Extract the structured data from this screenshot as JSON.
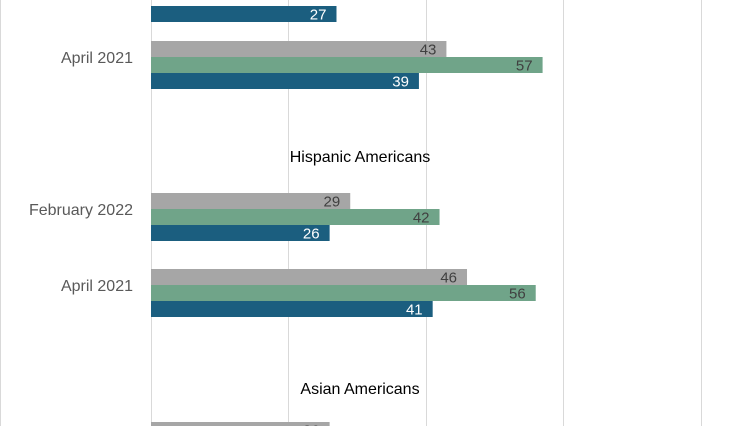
{
  "chart_data": {
    "type": "bar",
    "orientation": "horizontal",
    "title": "",
    "xlabel": "",
    "ylabel": "",
    "xlim": [
      0,
      100
    ],
    "grid": true,
    "series_colors": [
      "#a6a6a6",
      "#70a489",
      "#1b5e7f"
    ],
    "groups": [
      {
        "name": "",
        "rows": [
          {
            "label": "",
            "values": [
              null,
              null,
              27
            ]
          },
          {
            "label": "April 2021",
            "values": [
              43,
              57,
              39
            ]
          }
        ]
      },
      {
        "name": "Hispanic Americans",
        "rows": [
          {
            "label": "February 2022",
            "values": [
              29,
              42,
              26
            ]
          },
          {
            "label": "April 2021",
            "values": [
              46,
              56,
              41
            ]
          }
        ]
      },
      {
        "name": "Asian Americans",
        "rows": [
          {
            "label": "",
            "values": [
              26,
              null,
              null
            ]
          }
        ]
      }
    ]
  }
}
